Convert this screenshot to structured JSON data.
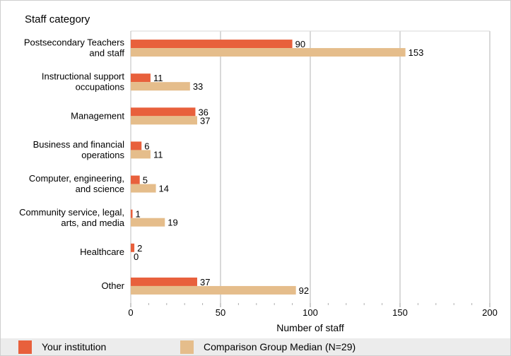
{
  "colors": {
    "series1": "#e8603c",
    "series2": "#e5bd8b",
    "grid": "#d9d9d9",
    "legend_bg": "#ececec"
  },
  "legend": [
    {
      "label": "Your institution"
    },
    {
      "label": "Comparison Group Median (N=29)"
    }
  ],
  "chart_data": {
    "type": "bar",
    "orientation": "horizontal",
    "ylabel": "Staff category",
    "xlabel": "Number of staff",
    "xlim": [
      0,
      200
    ],
    "xticks": [
      0,
      50,
      100,
      150,
      200
    ],
    "categories": [
      [
        "Postsecondary Teachers",
        "and staff"
      ],
      [
        "Instructional support",
        "occupations"
      ],
      [
        "Management"
      ],
      [
        "Business and financial",
        "operations"
      ],
      [
        "Computer, engineering,",
        "and science"
      ],
      [
        "Community service, legal,",
        "arts, and media"
      ],
      [
        "Healthcare"
      ],
      [
        "Other"
      ]
    ],
    "series": [
      {
        "name": "Your institution",
        "values": [
          90,
          11,
          36,
          6,
          5,
          1,
          2,
          37
        ]
      },
      {
        "name": "Comparison Group Median (N=29)",
        "values": [
          153,
          33,
          37,
          11,
          14,
          19,
          0,
          92
        ]
      }
    ],
    "grid": true,
    "legend_position": "bottom"
  }
}
